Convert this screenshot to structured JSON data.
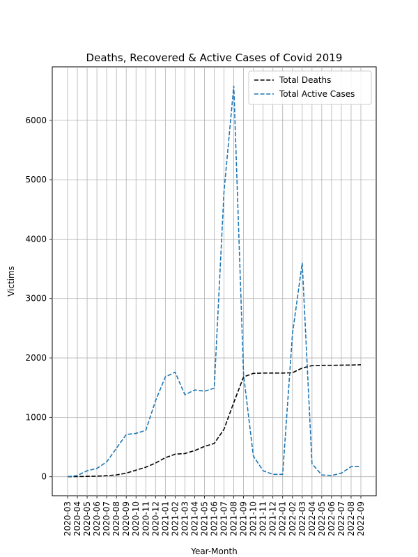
{
  "chart_data": {
    "type": "line",
    "title": "Deaths, Recovered & Active Cases of Covid 2019",
    "xlabel": "Year-Month",
    "ylabel": "Victims",
    "categories": [
      "2020-03",
      "2020-04",
      "2020-05",
      "2020-06",
      "2020-07",
      "2020-08",
      "2020-09",
      "2020-10",
      "2020-11",
      "2020-12",
      "2021-01",
      "2021-02",
      "2021-03",
      "2021-04",
      "2021-05",
      "2021-06",
      "2021-07",
      "2021-08",
      "2021-09",
      "2021-10",
      "2021-11",
      "2021-12",
      "2022-01",
      "2022-02",
      "2022-03",
      "2022-04",
      "2022-05",
      "2022-06",
      "2022-07",
      "2022-08",
      "2022-09"
    ],
    "ylim": [
      -320,
      6900
    ],
    "yticks": [
      0,
      1000,
      2000,
      3000,
      4000,
      5000,
      6000
    ],
    "grid": true,
    "legend_position": "upper right",
    "series": [
      {
        "name": "Total Deaths",
        "color": "#000000",
        "values": [
          0,
          3,
          6,
          10,
          18,
          30,
          60,
          110,
          160,
          230,
          320,
          380,
          390,
          440,
          510,
          560,
          800,
          1250,
          1680,
          1740,
          1745,
          1745,
          1745,
          1750,
          1830,
          1870,
          1875,
          1875,
          1878,
          1880,
          1885
        ]
      },
      {
        "name": "Total Active Cases",
        "color": "#1f77b4",
        "values": [
          0,
          20,
          100,
          140,
          250,
          480,
          710,
          730,
          780,
          1280,
          1680,
          1760,
          1380,
          1460,
          1440,
          1490,
          4800,
          6580,
          1720,
          350,
          100,
          40,
          40,
          2400,
          3600,
          220,
          30,
          20,
          60,
          170,
          170
        ]
      }
    ]
  }
}
